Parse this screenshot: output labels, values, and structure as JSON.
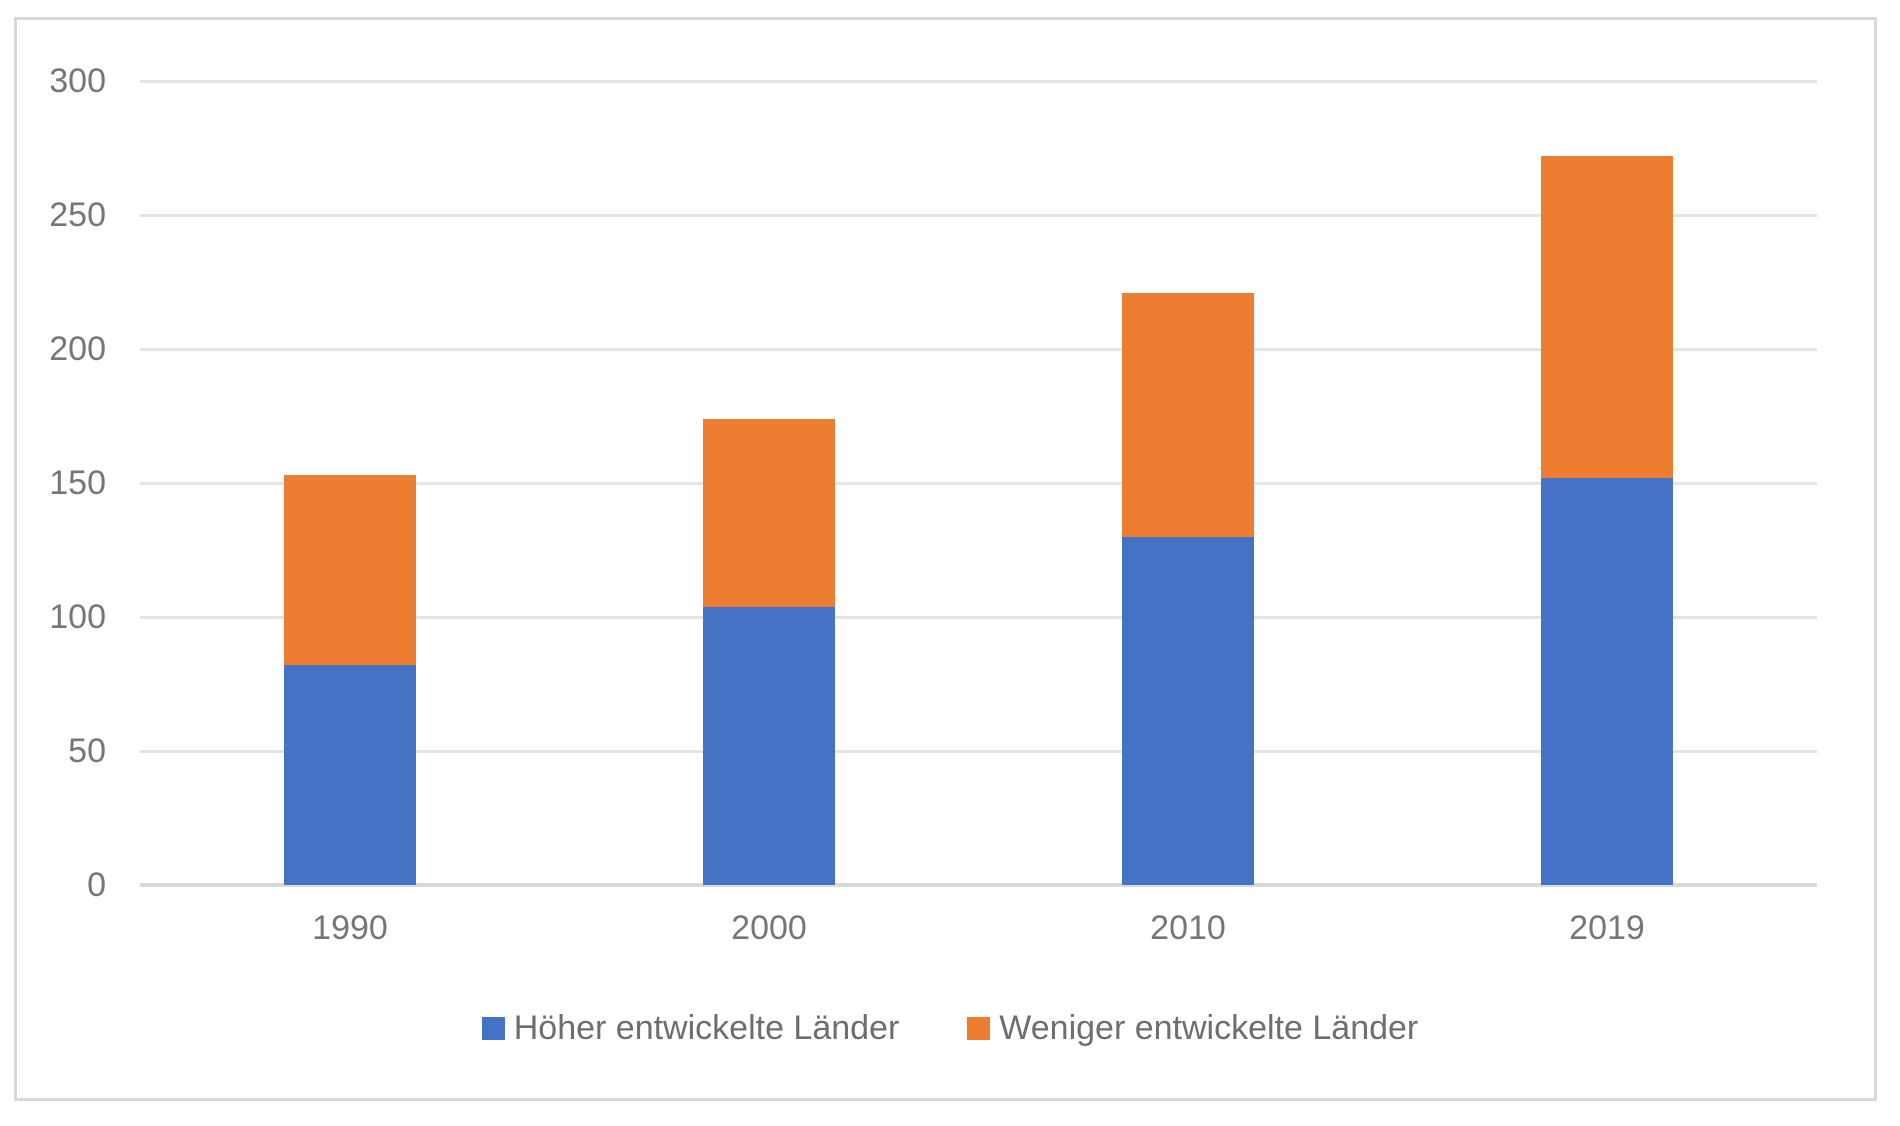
{
  "chart_data": {
    "type": "bar",
    "stacked": true,
    "title": "",
    "xlabel": "",
    "ylabel": "",
    "categories": [
      "1990",
      "2000",
      "2010",
      "2019"
    ],
    "series": [
      {
        "name": "Höher entwickelte Länder",
        "color": "#4472C4",
        "values": [
          82,
          104,
          130,
          152
        ]
      },
      {
        "name": "Weniger entwickelte Länder",
        "color": "#ED7D31",
        "values": [
          71,
          70,
          91,
          120
        ]
      }
    ],
    "ylim": [
      0,
      300
    ],
    "yticks": [
      0,
      50,
      100,
      150,
      200,
      250,
      300
    ],
    "grid": "horizontal-only",
    "gridline_color": "#e4e4e4",
    "axis_label_color": "#767676",
    "legend_position": "bottom-center",
    "plot_background": "#ffffff",
    "frame_border_color": "#d8d8d8"
  }
}
